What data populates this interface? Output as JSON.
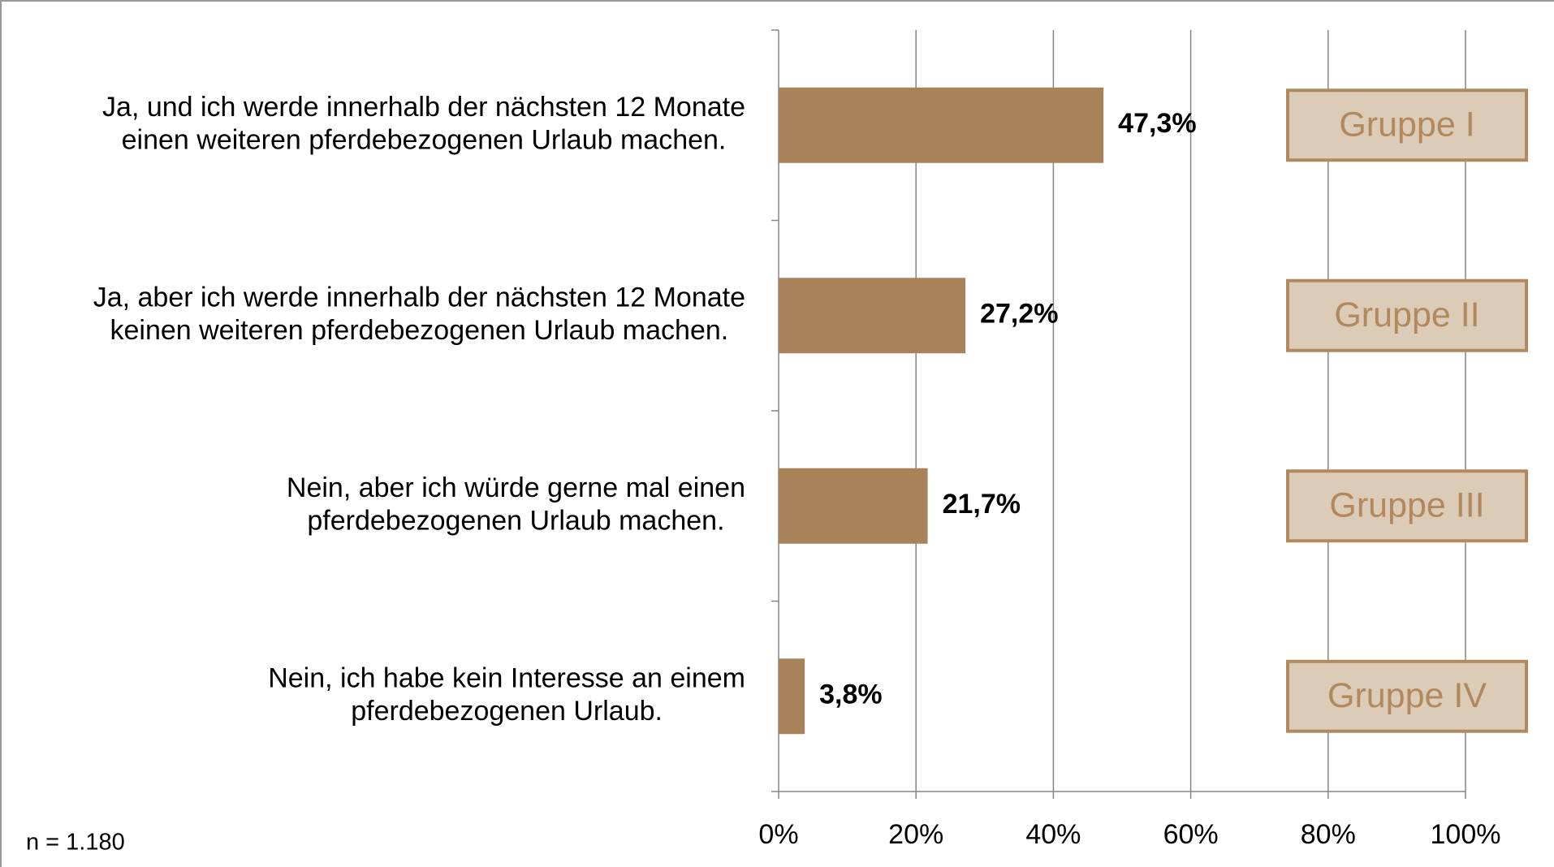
{
  "chart_data": {
    "type": "hbar",
    "categories": [
      "Ja, und ich werde innerhalb der nächsten 12 Monate\neinen weiteren pferdebezogenen Urlaub machen.",
      "Ja, aber ich werde innerhalb der nächsten 12 Monate\nkeinen weiteren pferdebezogenen Urlaub machen.",
      "Nein, aber ich würde gerne mal einen\npferdebezogenen Urlaub machen.",
      "Nein, ich habe kein Interesse an einem\npferdebezogenen Urlaub."
    ],
    "values": [
      47.3,
      27.2,
      21.7,
      3.8
    ],
    "value_labels": [
      "47,3%",
      "27,2%",
      "21,7%",
      "3,8%"
    ],
    "group_labels": [
      "Gruppe I",
      "Gruppe II",
      "Gruppe III",
      "Gruppe IV"
    ],
    "color": "#a8835a",
    "xlim": [
      0,
      100
    ],
    "xticks": [
      {
        "value": 0,
        "label": "0%"
      },
      {
        "value": 20,
        "label": "20%"
      },
      {
        "value": 40,
        "label": "40%"
      },
      {
        "value": 60,
        "label": "60%"
      },
      {
        "value": 80,
        "label": "80%"
      },
      {
        "value": 100,
        "label": "100%"
      }
    ],
    "grid": true,
    "annotation": "n = 1.180"
  }
}
